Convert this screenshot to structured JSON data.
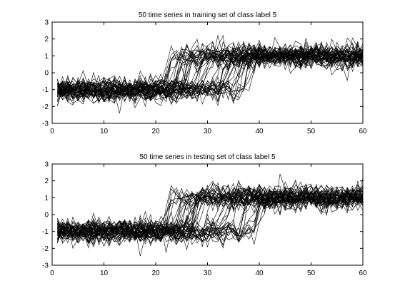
{
  "chart_data": [
    {
      "type": "line",
      "title": "50 time series in training set of class label 5",
      "xlabel": "",
      "ylabel": "",
      "xlim": [
        0,
        60
      ],
      "ylim": [
        -3,
        3
      ],
      "xticks": [
        0,
        10,
        20,
        30,
        40,
        50,
        60
      ],
      "yticks": [
        -3,
        -2,
        -1,
        0,
        1,
        2,
        3
      ],
      "grid": false,
      "legend": "none",
      "line_color": "#000000",
      "series_count": 50,
      "points_per_series": 60,
      "pattern": {
        "low_level": -1,
        "high_level": 1,
        "noise_sd": 0.35,
        "transition_range": [
          20,
          40
        ],
        "x_range": [
          1,
          60
        ]
      }
    },
    {
      "type": "line",
      "title": "50 time series in testing set of class label 5",
      "xlabel": "",
      "ylabel": "",
      "xlim": [
        0,
        60
      ],
      "ylim": [
        -3,
        3
      ],
      "xticks": [
        0,
        10,
        20,
        30,
        40,
        50,
        60
      ],
      "yticks": [
        -3,
        -2,
        -1,
        0,
        1,
        2,
        3
      ],
      "grid": false,
      "legend": "none",
      "line_color": "#000000",
      "series_count": 50,
      "points_per_series": 60,
      "pattern": {
        "low_level": -1,
        "high_level": 1,
        "noise_sd": 0.35,
        "transition_range": [
          20,
          40
        ],
        "x_range": [
          1,
          60
        ]
      }
    }
  ]
}
